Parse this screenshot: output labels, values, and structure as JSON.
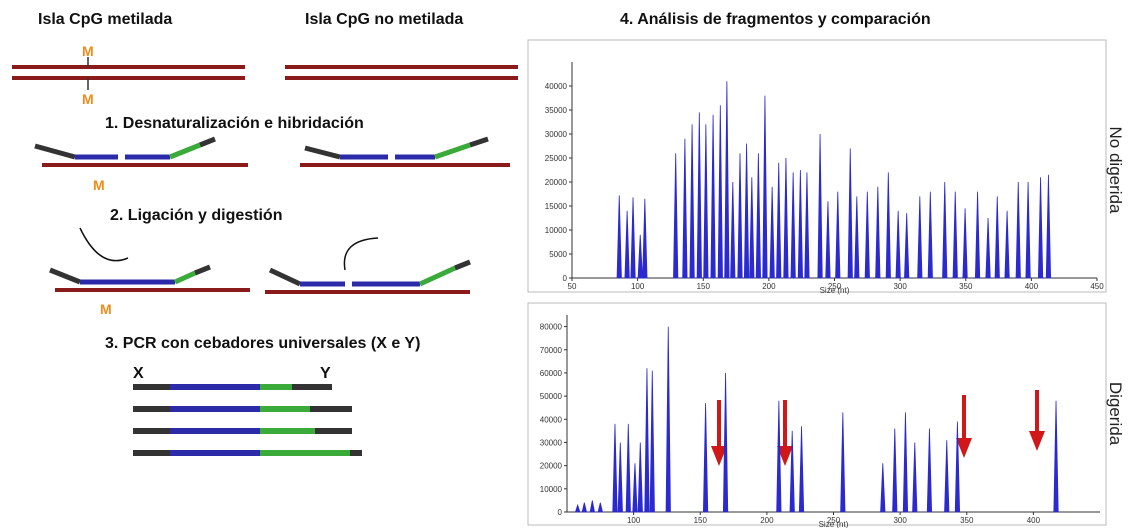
{
  "labels": {
    "methylated": "Isla CpG metilada",
    "unmethylated": "Isla CpG no metilada",
    "methyl_mark": "M",
    "primer_x": "X",
    "primer_y": "Y"
  },
  "steps": [
    "1. Desnaturalización e hibridación",
    "2. Ligación y digestión",
    "3. PCR con cebadores universales (X e Y)",
    "4. Análisis de fragmentos y comparación"
  ],
  "chart_data": [
    {
      "type": "spike",
      "side_label": "No digerida",
      "xlabel": "Size (nt)",
      "color": "#2a2ad0",
      "x": [
        86,
        92,
        96.5,
        102,
        105.5,
        129,
        136,
        141.5,
        147,
        152,
        157.5,
        163,
        168,
        172.5,
        178,
        183,
        187,
        192,
        197,
        202.5,
        207.5,
        213,
        218.5,
        224,
        229,
        239,
        245,
        252.5,
        262,
        267,
        275,
        283,
        291,
        298.5,
        305,
        315,
        323,
        334,
        342,
        349.5,
        359,
        367,
        374,
        381.5,
        390,
        397.5,
        407,
        413
      ],
      "values": [
        17200,
        14000,
        16800,
        9000,
        16500,
        26000,
        29000,
        32000,
        34500,
        32000,
        34000,
        36000,
        41000,
        20000,
        26000,
        28000,
        21000,
        26000,
        38000,
        19000,
        24000,
        25000,
        22000,
        22500,
        22000,
        30000,
        16000,
        18000,
        27000,
        17000,
        18000,
        19000,
        22000,
        14000,
        13500,
        17000,
        18000,
        20000,
        18000,
        14500,
        18000,
        12500,
        17000,
        14000,
        20000,
        20000,
        21000,
        21500
      ],
      "xlim": [
        50,
        450
      ],
      "xticks": [
        50,
        100,
        150,
        200,
        250,
        300,
        350,
        400,
        450
      ],
      "ylim": [
        0,
        45000
      ],
      "yticks": [
        0,
        5000,
        10000,
        15000,
        20000,
        25000,
        30000,
        35000,
        40000
      ]
    },
    {
      "type": "spike",
      "side_label": "Digerida",
      "xlabel": "Size (nt)",
      "color": "#2a2ad0",
      "x": [
        58,
        63,
        69,
        75,
        86,
        90,
        96,
        101,
        105,
        110,
        114,
        126,
        154,
        169,
        209,
        219,
        226,
        257,
        287,
        296,
        304,
        311,
        322,
        335,
        343,
        417
      ],
      "values": [
        3000,
        4000,
        5000,
        4000,
        38000,
        30000,
        38000,
        21000,
        30000,
        62000,
        61000,
        80000,
        47000,
        60000,
        48000,
        35000,
        37000,
        43000,
        21000,
        36000,
        43000,
        30000,
        36000,
        31000,
        39000,
        48000
      ],
      "xlim": [
        50,
        450
      ],
      "xticks": [
        100,
        150,
        200,
        250,
        300,
        350,
        400
      ],
      "ylim": [
        0,
        85000
      ],
      "yticks": [
        0,
        10000,
        20000,
        30000,
        40000,
        50000,
        60000,
        70000,
        80000
      ]
    }
  ]
}
